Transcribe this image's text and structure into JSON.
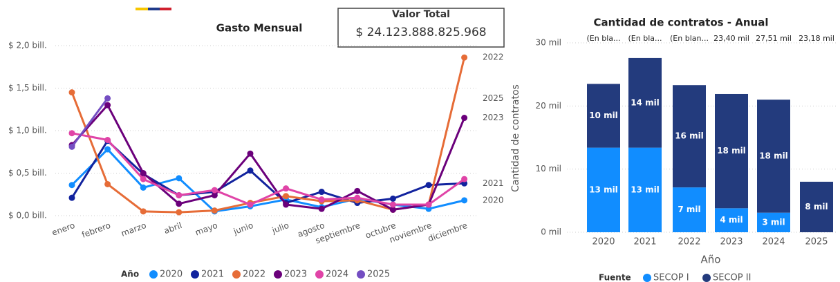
{
  "card": {
    "title": "Valor Total",
    "value": "$ 24.123.888.825.968"
  },
  "chart_data": [
    {
      "type": "line",
      "title": "Gasto Mensual",
      "categories": [
        "enero",
        "febrero",
        "marzo",
        "abril",
        "mayo",
        "junio",
        "julio",
        "agosto",
        "septiembre",
        "octubre",
        "noviembre",
        "diciembre"
      ],
      "ylim": [
        0,
        2.0
      ],
      "yticks": [
        {
          "value": 0,
          "label": "$ 0,0 bill."
        },
        {
          "value": 0.5,
          "label": "$ 0,5 bill."
        },
        {
          "value": 1.0,
          "label": "$ 1,0 bill."
        },
        {
          "value": 1.5,
          "label": "$ 1,5 bill."
        },
        {
          "value": 2.0,
          "label": "$ 2,0 bill."
        }
      ],
      "grid": true,
      "legend_title": "Año",
      "legend": "bottom",
      "series": [
        {
          "name": "2020",
          "color": "#118DFF",
          "end_label": true,
          "values": [
            0.36,
            0.78,
            0.33,
            0.44,
            0.05,
            0.11,
            0.19,
            0.1,
            0.2,
            0.13,
            0.08,
            0.18
          ]
        },
        {
          "name": "2021",
          "color": "#12239E",
          "end_label": true,
          "values": [
            0.21,
            0.88,
            0.49,
            0.24,
            0.28,
            0.53,
            0.15,
            0.28,
            0.15,
            0.2,
            0.36,
            0.38
          ]
        },
        {
          "name": "2022",
          "color": "#E66C37",
          "end_label": true,
          "values": [
            1.45,
            0.37,
            0.05,
            0.04,
            0.06,
            0.15,
            0.23,
            0.17,
            0.18,
            0.07,
            0.13,
            1.86
          ]
        },
        {
          "name": "2023",
          "color": "#6B007B",
          "end_label": true,
          "values": [
            0.83,
            1.3,
            0.5,
            0.14,
            0.24,
            0.73,
            0.13,
            0.08,
            0.29,
            0.07,
            0.13,
            1.15
          ]
        },
        {
          "name": "2024",
          "color": "#E044A7",
          "end_label": false,
          "values": [
            0.97,
            0.89,
            0.43,
            0.24,
            0.3,
            0.13,
            0.32,
            0.19,
            0.21,
            0.13,
            0.13,
            0.43
          ]
        },
        {
          "name": "2025",
          "color": "#744EC2",
          "end_label": true,
          "values": [
            0.81,
            1.38,
            null,
            null,
            null,
            null,
            null,
            null,
            null,
            null,
            null,
            null
          ]
        }
      ]
    },
    {
      "type": "stacked_bar",
      "title": "Cantidad de contratos - Anual",
      "xlabel": "Año",
      "ylabel": "Cantidad de contratos",
      "categories": [
        "2020",
        "2021",
        "2022",
        "2023",
        "2024",
        "2025"
      ],
      "top_labels": [
        "(En bla...",
        "(En bla...",
        "(En blan...",
        "23,40 mil",
        "27,51 mil",
        "23,18 mil"
      ],
      "ylim": [
        0,
        30000
      ],
      "yticks": [
        {
          "value": 0,
          "label": "0 mil"
        },
        {
          "value": 10000,
          "label": "10 mil"
        },
        {
          "value": 20000,
          "label": "20 mil"
        },
        {
          "value": 30000,
          "label": "30 mil"
        }
      ],
      "grid": true,
      "legend_title": "Fuente",
      "legend": "bottom",
      "series": [
        {
          "name": "SECOP I",
          "color": "#118DFF",
          "values": [
            13400,
            13400,
            7100,
            3800,
            3100,
            null
          ],
          "value_labels": [
            "13 mil",
            "13 mil",
            "7 mil",
            "4 mil",
            "3 mil",
            null
          ]
        },
        {
          "name": "SECOP II",
          "color": "#233B7D",
          "values": [
            10100,
            14200,
            16200,
            18100,
            17900,
            8000
          ],
          "value_labels": [
            "10 mil",
            "14 mil",
            "16 mil",
            "18 mil",
            "18 mil",
            "8 mil"
          ]
        }
      ]
    }
  ]
}
